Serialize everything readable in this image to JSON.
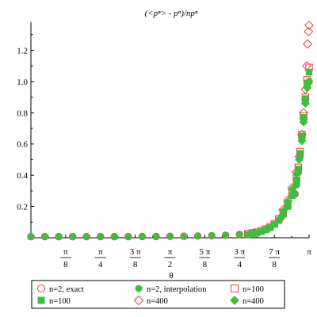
{
  "chart_data": {
    "type": "scatter",
    "title": "(<pⁿ> - pⁿ)/npⁿ",
    "xlabel": "θ",
    "ylabel": "",
    "xlim": [
      0,
      3.1416
    ],
    "ylim": [
      0,
      1.38
    ],
    "grid": false,
    "legend_position": "bottom",
    "xticks": [
      {
        "value": 0.3927,
        "num": "π",
        "den": "8"
      },
      {
        "value": 0.7854,
        "num": "π",
        "den": "4"
      },
      {
        "value": 1.1781,
        "num": "3 π",
        "den": "8"
      },
      {
        "value": 1.5708,
        "num": "π",
        "den": "2"
      },
      {
        "value": 1.9635,
        "num": "5 π",
        "den": "8"
      },
      {
        "value": 2.3562,
        "num": "3 π",
        "den": "4"
      },
      {
        "value": 2.7489,
        "num": "7 π",
        "den": "8"
      },
      {
        "value": 3.1416,
        "num": "π",
        "den": ""
      }
    ],
    "yticks": [
      {
        "value": 0.2,
        "label": "0.2"
      },
      {
        "value": 0.4,
        "label": "0.4"
      },
      {
        "value": 0.6,
        "label": "0.6"
      },
      {
        "value": 0.8,
        "label": "0.8"
      },
      {
        "value": 1.0,
        "label": "1.0"
      },
      {
        "value": 1.2,
        "label": "1.2"
      }
    ],
    "series": [
      {
        "name": "n=2, exact",
        "marker": "circle-open",
        "color": "#e8403a",
        "x": [
          0.0,
          0.1571,
          0.3142,
          0.4712,
          0.6283,
          0.7854,
          0.9425,
          1.0996,
          1.2566,
          1.4137,
          1.5708,
          1.7279,
          1.885,
          2.042,
          2.1991,
          2.3562,
          2.5133,
          2.6704,
          2.8274,
          2.9845,
          3.0,
          3.02,
          3.04,
          3.06,
          3.08,
          3.1,
          3.12,
          3.1416
        ],
        "y": [
          0.007,
          0.007,
          0.007,
          0.007,
          0.007,
          0.007,
          0.007,
          0.007,
          0.008,
          0.008,
          0.009,
          0.01,
          0.011,
          0.013,
          0.016,
          0.021,
          0.032,
          0.055,
          0.13,
          0.28,
          0.34,
          0.42,
          0.52,
          0.64,
          0.76,
          0.88,
          0.97,
          1.0
        ]
      },
      {
        "name": "n=2, interpolation",
        "marker": "circle-filled",
        "color": "#3cbf3c",
        "x": [
          0.0,
          0.1571,
          0.3142,
          0.4712,
          0.6283,
          0.7854,
          0.9425,
          1.0996,
          1.2566,
          1.4137,
          1.5708,
          1.7279,
          1.885,
          2.042,
          2.1991,
          2.3562,
          2.5133,
          2.6704,
          2.8274,
          2.9845,
          3.0,
          3.02,
          3.04,
          3.06,
          3.08,
          3.1,
          3.12,
          3.1416
        ],
        "y": [
          0.007,
          0.007,
          0.007,
          0.007,
          0.007,
          0.007,
          0.007,
          0.007,
          0.008,
          0.008,
          0.009,
          0.01,
          0.011,
          0.013,
          0.016,
          0.021,
          0.032,
          0.055,
          0.13,
          0.28,
          0.34,
          0.42,
          0.52,
          0.64,
          0.76,
          0.88,
          0.97,
          1.0
        ]
      },
      {
        "name": "n=100",
        "marker": "square-open",
        "color": "#e8403a",
        "x": [
          2.45,
          2.5,
          2.55,
          2.6,
          2.65,
          2.7,
          2.75,
          2.8,
          2.85,
          2.9,
          2.95,
          3.0,
          3.02,
          3.04,
          3.06,
          3.08,
          3.1,
          3.12,
          3.1416
        ],
        "y": [
          0.025,
          0.03,
          0.035,
          0.045,
          0.055,
          0.07,
          0.09,
          0.12,
          0.16,
          0.21,
          0.28,
          0.38,
          0.45,
          0.55,
          0.66,
          0.78,
          0.9,
          1.01,
          1.09
        ]
      },
      {
        "name": "n=100",
        "marker": "square-filled",
        "color": "#3cbf3c",
        "x": [
          2.45,
          2.5,
          2.55,
          2.6,
          2.65,
          2.7,
          2.75,
          2.8,
          2.85,
          2.9,
          2.95,
          3.0,
          3.02,
          3.04,
          3.06,
          3.08,
          3.1,
          3.12,
          3.1416
        ],
        "y": [
          0.02,
          0.025,
          0.03,
          0.04,
          0.05,
          0.065,
          0.085,
          0.11,
          0.15,
          0.2,
          0.27,
          0.37,
          0.44,
          0.54,
          0.65,
          0.77,
          0.89,
          0.99,
          1.06
        ]
      },
      {
        "name": "n=400",
        "marker": "diamond-open",
        "color": "#e8403a",
        "x": [
          2.85,
          2.9,
          2.95,
          3.0,
          3.03,
          3.06,
          3.08,
          3.1,
          3.115,
          3.125,
          3.135,
          3.1416
        ],
        "y": [
          0.18,
          0.24,
          0.32,
          0.42,
          0.52,
          0.66,
          0.8,
          0.95,
          1.1,
          1.24,
          1.32,
          1.36
        ]
      },
      {
        "name": "n=400",
        "marker": "diamond-filled",
        "color": "#3cbf3c",
        "x": [
          2.85,
          2.9,
          2.95,
          3.0,
          3.03,
          3.06,
          3.08,
          3.1,
          3.12,
          3.1416
        ],
        "y": [
          0.17,
          0.23,
          0.31,
          0.41,
          0.5,
          0.62,
          0.74,
          0.86,
          0.96,
          1.0
        ]
      }
    ]
  }
}
